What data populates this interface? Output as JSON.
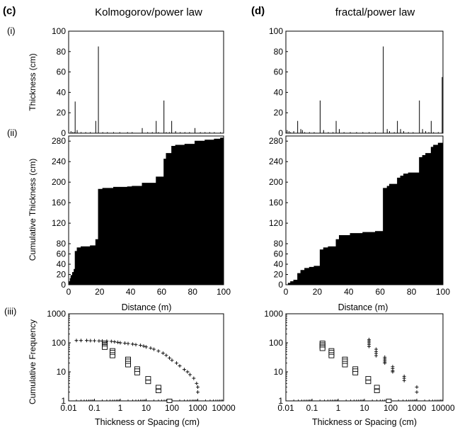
{
  "figure": {
    "left": {
      "panel_label": "(c)",
      "title": "Kolmogorov/power law",
      "row_labels": [
        "(i)",
        "(ii)",
        "(iii)"
      ]
    },
    "right": {
      "panel_label": "(d)",
      "title": "fractal/power law"
    },
    "thickness_ylabel": "Thickness (cm)",
    "cumulative_ylabel": "Cumulative Thickness (cm)",
    "distance_xlabel": "Distance (m)",
    "frequency_ylabel": "Cumulative Frequency",
    "frequency_xlabel": "Thickness or Spacing (cm)"
  },
  "chart_data": [
    {
      "id": "c-i",
      "type": "bar",
      "ylabel": "Thickness (cm)",
      "xlim": [
        0,
        100
      ],
      "ylim": [
        0,
        100
      ],
      "yticks": [
        0,
        20,
        40,
        60,
        80,
        100
      ],
      "events": [
        [
          1.5,
          2
        ],
        [
          2.5,
          1
        ],
        [
          3.5,
          1
        ],
        [
          4.2,
          31
        ],
        [
          5.5,
          3
        ],
        [
          8,
          1
        ],
        [
          11,
          1
        ],
        [
          14,
          1
        ],
        [
          17.5,
          12
        ],
        [
          19.2,
          85
        ],
        [
          22,
          1
        ],
        [
          25,
          1
        ],
        [
          29,
          1
        ],
        [
          33,
          1
        ],
        [
          38,
          1
        ],
        [
          41,
          1
        ],
        [
          47.5,
          5
        ],
        [
          51,
          1
        ],
        [
          54,
          1
        ],
        [
          56.5,
          12
        ],
        [
          58,
          1
        ],
        [
          61.5,
          32
        ],
        [
          63,
          1
        ],
        [
          65,
          1
        ],
        [
          66.5,
          12
        ],
        [
          69,
          2
        ],
        [
          72,
          1
        ],
        [
          75,
          1
        ],
        [
          78,
          1
        ],
        [
          81.5,
          5
        ],
        [
          85,
          1
        ],
        [
          88,
          1
        ],
        [
          91,
          1
        ],
        [
          94,
          1
        ],
        [
          98,
          1
        ]
      ]
    },
    {
      "id": "d-i",
      "type": "bar",
      "ylabel": "Thickness (cm)",
      "xlim": [
        0,
        100
      ],
      "ylim": [
        0,
        100
      ],
      "yticks": [
        0,
        20,
        40,
        60,
        80,
        100
      ],
      "events": [
        [
          0.8,
          3
        ],
        [
          2,
          2
        ],
        [
          3,
          1
        ],
        [
          5,
          2
        ],
        [
          7.5,
          12
        ],
        [
          9.5,
          4
        ],
        [
          10.5,
          3
        ],
        [
          12,
          1
        ],
        [
          15,
          1
        ],
        [
          18,
          1
        ],
        [
          21.8,
          32
        ],
        [
          24,
          3
        ],
        [
          27,
          1
        ],
        [
          30,
          1
        ],
        [
          32,
          12
        ],
        [
          34,
          4
        ],
        [
          37,
          1
        ],
        [
          41,
          1
        ],
        [
          45,
          1
        ],
        [
          49,
          1
        ],
        [
          53,
          1
        ],
        [
          57,
          1
        ],
        [
          62,
          85
        ],
        [
          64.5,
          4
        ],
        [
          66,
          2
        ],
        [
          69,
          1
        ],
        [
          71,
          12
        ],
        [
          73,
          4
        ],
        [
          75,
          2
        ],
        [
          78,
          1
        ],
        [
          81,
          1
        ],
        [
          85,
          32
        ],
        [
          87,
          4
        ],
        [
          89,
          2
        ],
        [
          91,
          1
        ],
        [
          92.5,
          12
        ],
        [
          94,
          1
        ],
        [
          97,
          1
        ],
        [
          99.5,
          55
        ]
      ]
    },
    {
      "id": "c-ii",
      "type": "area",
      "xlabel": "Distance (m)",
      "ylabel": "Cumulative Thickness (cm)",
      "xlim": [
        0,
        100
      ],
      "ylim": [
        0,
        290
      ],
      "yticks": [
        0,
        20,
        40,
        60,
        80,
        120,
        160,
        200,
        240,
        280
      ],
      "xticks": [
        0,
        20,
        40,
        60,
        80,
        100
      ],
      "x": [
        0,
        0.5,
        1,
        1.5,
        2.5,
        3.5,
        4.2,
        5.5,
        8,
        14,
        17.5,
        19.2,
        22,
        29,
        38,
        41,
        47.5,
        56.5,
        61.5,
        63,
        66.5,
        69,
        75,
        81.5,
        88,
        94,
        98,
        100
      ],
      "y": [
        0,
        6,
        12,
        18,
        24,
        30,
        65,
        72,
        74,
        76,
        88,
        186,
        188,
        190,
        191,
        192,
        198,
        210,
        245,
        256,
        270,
        272,
        274,
        280,
        282,
        284,
        286,
        286
      ]
    },
    {
      "id": "d-ii",
      "type": "area",
      "xlabel": "Distance (m)",
      "ylabel": "Cumulative Thickness (cm)",
      "xlim": [
        0,
        100
      ],
      "ylim": [
        0,
        290
      ],
      "yticks": [
        0,
        20,
        40,
        60,
        80,
        120,
        160,
        200,
        240,
        280
      ],
      "xticks": [
        0,
        20,
        40,
        60,
        80,
        100
      ],
      "x": [
        0,
        1.5,
        3,
        5,
        7.5,
        9.5,
        12,
        15,
        18,
        21.8,
        24,
        27,
        32,
        34,
        41,
        49,
        57,
        62,
        64.5,
        66,
        71,
        73,
        75,
        78,
        85,
        87,
        89,
        92.5,
        94,
        97,
        100
      ],
      "y": [
        0,
        3,
        6,
        9,
        22,
        28,
        32,
        34,
        36,
        68,
        72,
        74,
        88,
        96,
        100,
        102,
        104,
        188,
        192,
        196,
        208,
        212,
        216,
        218,
        248,
        252,
        256,
        268,
        272,
        276,
        290
      ]
    },
    {
      "id": "c-iii",
      "type": "scatter",
      "xlabel": "Thickness or Spacing (cm)",
      "ylabel": "Cumulative Frequency",
      "xscale": "log",
      "yscale": "log",
      "xlim": [
        0.01,
        10000
      ],
      "ylim": [
        1,
        1000
      ],
      "xticks": [
        "0.01",
        "0.1",
        "1",
        "10",
        "100",
        "1000",
        "10000"
      ],
      "yticks": [
        "1",
        "10",
        "100",
        "1000"
      ],
      "series": [
        {
          "marker": "square",
          "points": [
            [
              0.25,
              100
            ],
            [
              0.25,
              90
            ],
            [
              0.25,
              82
            ],
            [
              0.25,
              75
            ],
            [
              0.25,
              68
            ],
            [
              0.5,
              55
            ],
            [
              0.5,
              48
            ],
            [
              0.5,
              40
            ],
            [
              0.5,
              35
            ],
            [
              2,
              28
            ],
            [
              2,
              24
            ],
            [
              2,
              20
            ],
            [
              2,
              17
            ],
            [
              4.5,
              13
            ],
            [
              4.5,
              11
            ],
            [
              4.5,
              9
            ],
            [
              12,
              6
            ],
            [
              12,
              4.5
            ],
            [
              30,
              3
            ],
            [
              30,
              2.2
            ],
            [
              80,
              1
            ]
          ]
        },
        {
          "marker": "plus",
          "points": [
            [
              0.02,
              120
            ],
            [
              0.03,
              120
            ],
            [
              0.05,
              120
            ],
            [
              0.07,
              118
            ],
            [
              0.1,
              118
            ],
            [
              0.15,
              116
            ],
            [
              0.2,
              115
            ],
            [
              0.3,
              114
            ],
            [
              0.45,
              112
            ],
            [
              0.6,
              108
            ],
            [
              0.8,
              104
            ],
            [
              1,
              100
            ],
            [
              1.5,
              97
            ],
            [
              2,
              94
            ],
            [
              3,
              90
            ],
            [
              4,
              86
            ],
            [
              6,
              82
            ],
            [
              8,
              77
            ],
            [
              10,
              72
            ],
            [
              15,
              66
            ],
            [
              20,
              60
            ],
            [
              30,
              52
            ],
            [
              45,
              44
            ],
            [
              60,
              37
            ],
            [
              80,
              30
            ],
            [
              100,
              25
            ],
            [
              150,
              20
            ],
            [
              200,
              16
            ],
            [
              300,
              12
            ],
            [
              400,
              10
            ],
            [
              500,
              8
            ],
            [
              700,
              6
            ],
            [
              900,
              4
            ],
            [
              1000,
              3
            ],
            [
              1000,
              2
            ]
          ]
        }
      ]
    },
    {
      "id": "d-iii",
      "type": "scatter",
      "xlabel": "Thickness or Spacing (cm)",
      "ylabel": "Cumulative Frequency",
      "xscale": "log",
      "yscale": "log",
      "xlim": [
        0.01,
        10000
      ],
      "ylim": [
        1,
        1000
      ],
      "xticks": [
        "0.01",
        "0.1",
        "1",
        "10",
        "100",
        "1000",
        "10000"
      ],
      "yticks": [
        "1",
        "10",
        "100",
        "1000"
      ],
      "series": [
        {
          "marker": "square",
          "points": [
            [
              0.25,
              100
            ],
            [
              0.25,
              88
            ],
            [
              0.25,
              78
            ],
            [
              0.25,
              70
            ],
            [
              0.25,
              62
            ],
            [
              0.55,
              55
            ],
            [
              0.55,
              48
            ],
            [
              0.55,
              40
            ],
            [
              0.55,
              35
            ],
            [
              1.8,
              28
            ],
            [
              1.8,
              24
            ],
            [
              1.8,
              20
            ],
            [
              1.8,
              17
            ],
            [
              4.5,
              13
            ],
            [
              4.5,
              11
            ],
            [
              4.5,
              9
            ],
            [
              14,
              6
            ],
            [
              14,
              4.5
            ],
            [
              30,
              3
            ],
            [
              30,
              2.2
            ],
            [
              85,
              1
            ]
          ]
        },
        {
          "marker": "plus",
          "points": [
            [
              15,
              130
            ],
            [
              15,
              115
            ],
            [
              15,
              100
            ],
            [
              15,
              88
            ],
            [
              15,
              75
            ],
            [
              28,
              60
            ],
            [
              28,
              50
            ],
            [
              28,
              43
            ],
            [
              28,
              36
            ],
            [
              60,
              32
            ],
            [
              60,
              28
            ],
            [
              60,
              25
            ],
            [
              60,
              22
            ],
            [
              60,
              20
            ],
            [
              120,
              15
            ],
            [
              120,
              13
            ],
            [
              120,
              11
            ],
            [
              120,
              10
            ],
            [
              330,
              7
            ],
            [
              330,
              6
            ],
            [
              330,
              5
            ],
            [
              1000,
              3
            ],
            [
              1000,
              2
            ]
          ]
        }
      ]
    }
  ]
}
